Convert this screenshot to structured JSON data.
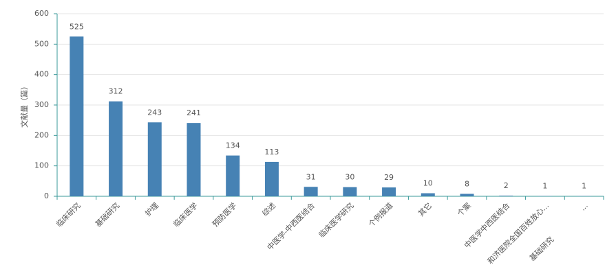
{
  "chart_data": {
    "type": "bar",
    "y_label": "文献量（篇）",
    "categories": [
      "临床研究",
      "基础研究",
      "护理",
      "临床医学",
      "预防医学",
      "综述",
      "中医学-中西医结合",
      "临床医学研究",
      "个例报道",
      "其它",
      "个案",
      "中医学中西医结合",
      [
        "和济医院全国百姓放心...",
        "基础研究"
      ],
      "..."
    ],
    "values": [
      525,
      312,
      243,
      241,
      134,
      113,
      31,
      30,
      29,
      10,
      8,
      2,
      1,
      1
    ],
    "color": "#4682b4",
    "ylim": [
      0,
      600
    ],
    "yticks": [
      0,
      100,
      200,
      300,
      400,
      500,
      600
    ],
    "grid": true
  }
}
